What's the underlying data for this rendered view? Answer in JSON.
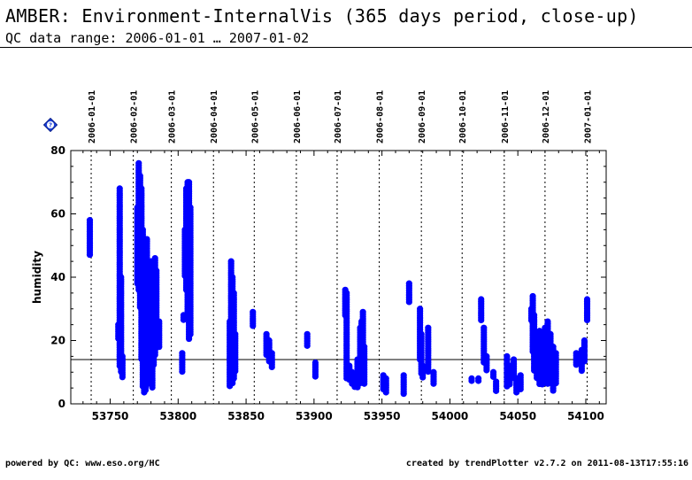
{
  "header": {
    "title": "AMBER: Environment-InternalVis (365 days period, close-up)",
    "subtitle": "QC data range: 2006-01-01 … 2007-01-02"
  },
  "footer": {
    "left": "powered by QC: www.eso.org/HC",
    "right": "created by trendPlotter v2.7.2 on 2011-08-13T17:55:16"
  },
  "help_icon": {
    "icon": "help-diamond-icon",
    "symbol": "?",
    "color": "#1a3fd8"
  },
  "colors": {
    "points": "#0000ff",
    "axes": "#000000"
  },
  "chart_data": {
    "type": "scatter",
    "title": "",
    "xlabel": "",
    "ylabel": "humidity",
    "xlim": [
      53721,
      54115
    ],
    "ylim": [
      0,
      80
    ],
    "x_ticks": [
      53750,
      53800,
      53850,
      53900,
      53950,
      54000,
      54050,
      54100
    ],
    "y_ticks": [
      0,
      20,
      40,
      60,
      80
    ],
    "reference_line_y": 14,
    "grid": "vertical dotted lines at month starts",
    "month_markers": [
      {
        "date": "2006-01-01",
        "mjd": 53736
      },
      {
        "date": "2006-02-01",
        "mjd": 53767
      },
      {
        "date": "2006-03-01",
        "mjd": 53795
      },
      {
        "date": "2006-04-01",
        "mjd": 53826
      },
      {
        "date": "2006-05-01",
        "mjd": 53856
      },
      {
        "date": "2006-06-01",
        "mjd": 53887
      },
      {
        "date": "2006-07-01",
        "mjd": 53917
      },
      {
        "date": "2006-08-01",
        "mjd": 53948
      },
      {
        "date": "2006-09-01",
        "mjd": 53979
      },
      {
        "date": "2006-10-01",
        "mjd": 54009
      },
      {
        "date": "2006-11-01",
        "mjd": 54040
      },
      {
        "date": "2006-12-01",
        "mjd": 54070
      },
      {
        "date": "2007-01-01",
        "mjd": 54101
      }
    ],
    "series": [
      {
        "color": "#0000ff",
        "clusters": [
          {
            "x": 53735,
            "y": [
              47,
              58
            ]
          },
          {
            "x": 53756,
            "y": [
              20,
              25
            ]
          },
          {
            "x": 53757,
            "y": [
              12,
              68
            ]
          },
          {
            "x": 53758,
            "y": [
              10,
              40
            ]
          },
          {
            "x": 53759,
            "y": [
              8,
              15
            ]
          },
          {
            "x": 53770,
            "y": [
              38,
              62
            ]
          },
          {
            "x": 53771,
            "y": [
              36,
              76
            ]
          },
          {
            "x": 53772,
            "y": [
              30,
              72
            ]
          },
          {
            "x": 53773,
            "y": [
              14,
              68
            ]
          },
          {
            "x": 53774,
            "y": [
              5,
              55
            ]
          },
          {
            "x": 53775,
            "y": [
              3,
              40
            ]
          },
          {
            "x": 53776,
            "y": [
              4,
              48
            ]
          },
          {
            "x": 53777,
            "y": [
              6,
              52
            ]
          },
          {
            "x": 53778,
            "y": [
              8,
              38
            ]
          },
          {
            "x": 53780,
            "y": [
              10,
              45
            ]
          },
          {
            "x": 53781,
            "y": [
              5,
              35
            ]
          },
          {
            "x": 53782,
            "y": [
              12,
              40
            ]
          },
          {
            "x": 53783,
            "y": [
              15,
              46
            ]
          },
          {
            "x": 53784,
            "y": [
              18,
              42
            ]
          },
          {
            "x": 53786,
            "y": [
              18,
              26
            ]
          },
          {
            "x": 53803,
            "y": [
              10,
              16
            ]
          },
          {
            "x": 53804,
            "y": [
              26,
              28
            ]
          },
          {
            "x": 53805,
            "y": [
              40,
              55
            ]
          },
          {
            "x": 53806,
            "y": [
              36,
              68
            ]
          },
          {
            "x": 53807,
            "y": [
              28,
              70
            ]
          },
          {
            "x": 53808,
            "y": [
              20,
              70
            ]
          },
          {
            "x": 53809,
            "y": [
              22,
              62
            ]
          },
          {
            "x": 53838,
            "y": [
              5,
              26
            ]
          },
          {
            "x": 53839,
            "y": [
              8,
              45
            ]
          },
          {
            "x": 53840,
            "y": [
              6,
              40
            ]
          },
          {
            "x": 53841,
            "y": [
              8,
              35
            ]
          },
          {
            "x": 53842,
            "y": [
              10,
              22
            ]
          },
          {
            "x": 53855,
            "y": [
              24,
              29
            ]
          },
          {
            "x": 53865,
            "y": [
              15,
              22
            ]
          },
          {
            "x": 53867,
            "y": [
              13,
              20
            ]
          },
          {
            "x": 53869,
            "y": [
              11,
              16
            ]
          },
          {
            "x": 53895,
            "y": [
              18,
              22
            ]
          },
          {
            "x": 53901,
            "y": [
              8,
              13
            ]
          },
          {
            "x": 53923,
            "y": [
              28,
              36
            ]
          },
          {
            "x": 53924,
            "y": [
              8,
              35
            ]
          },
          {
            "x": 53926,
            "y": [
              7,
              12
            ]
          },
          {
            "x": 53928,
            "y": [
              6,
              10
            ]
          },
          {
            "x": 53930,
            "y": [
              5,
              9
            ]
          },
          {
            "x": 53932,
            "y": [
              5,
              14
            ]
          },
          {
            "x": 53934,
            "y": [
              6,
              24
            ]
          },
          {
            "x": 53935,
            "y": [
              7,
              26
            ]
          },
          {
            "x": 53936,
            "y": [
              8,
              29
            ]
          },
          {
            "x": 53937,
            "y": [
              6,
              18
            ]
          },
          {
            "x": 53951,
            "y": [
              4,
              9
            ]
          },
          {
            "x": 53953,
            "y": [
              3,
              8
            ]
          },
          {
            "x": 53966,
            "y": [
              3,
              9
            ]
          },
          {
            "x": 53970,
            "y": [
              32,
              38
            ]
          },
          {
            "x": 53978,
            "y": [
              14,
              30
            ]
          },
          {
            "x": 53979,
            "y": [
              9,
              22
            ]
          },
          {
            "x": 53980,
            "y": [
              8,
              12
            ]
          },
          {
            "x": 53984,
            "y": [
              10,
              24
            ]
          },
          {
            "x": 53988,
            "y": [
              6,
              10
            ]
          },
          {
            "x": 54016,
            "y": [
              7,
              8
            ]
          },
          {
            "x": 54021,
            "y": [
              7,
              8
            ]
          },
          {
            "x": 54023,
            "y": [
              26,
              33
            ]
          },
          {
            "x": 54025,
            "y": [
              13,
              24
            ]
          },
          {
            "x": 54027,
            "y": [
              10,
              15
            ]
          },
          {
            "x": 54032,
            "y": [
              8,
              10
            ]
          },
          {
            "x": 54034,
            "y": [
              4,
              7
            ]
          },
          {
            "x": 54042,
            "y": [
              5,
              15
            ]
          },
          {
            "x": 54044,
            "y": [
              6,
              12
            ]
          },
          {
            "x": 54047,
            "y": [
              8,
              14
            ]
          },
          {
            "x": 54049,
            "y": [
              3,
              8
            ]
          },
          {
            "x": 54052,
            "y": [
              4,
              9
            ]
          },
          {
            "x": 54060,
            "y": [
              26,
              30
            ]
          },
          {
            "x": 54061,
            "y": [
              16,
              34
            ]
          },
          {
            "x": 54062,
            "y": [
              10,
              28
            ]
          },
          {
            "x": 54064,
            "y": [
              8,
              22
            ]
          },
          {
            "x": 54066,
            "y": [
              6,
              23
            ]
          },
          {
            "x": 54068,
            "y": [
              6,
              20
            ]
          },
          {
            "x": 54070,
            "y": [
              8,
              24
            ]
          },
          {
            "x": 54072,
            "y": [
              6,
              26
            ]
          },
          {
            "x": 54074,
            "y": [
              8,
              22
            ]
          },
          {
            "x": 54076,
            "y": [
              4,
              18
            ]
          },
          {
            "x": 54078,
            "y": [
              6,
              16
            ]
          },
          {
            "x": 54093,
            "y": [
              12,
              16
            ]
          },
          {
            "x": 54097,
            "y": [
              10,
              17
            ]
          },
          {
            "x": 54099,
            "y": [
              13,
              20
            ]
          },
          {
            "x": 54101,
            "y": [
              26,
              33
            ]
          }
        ]
      }
    ]
  }
}
